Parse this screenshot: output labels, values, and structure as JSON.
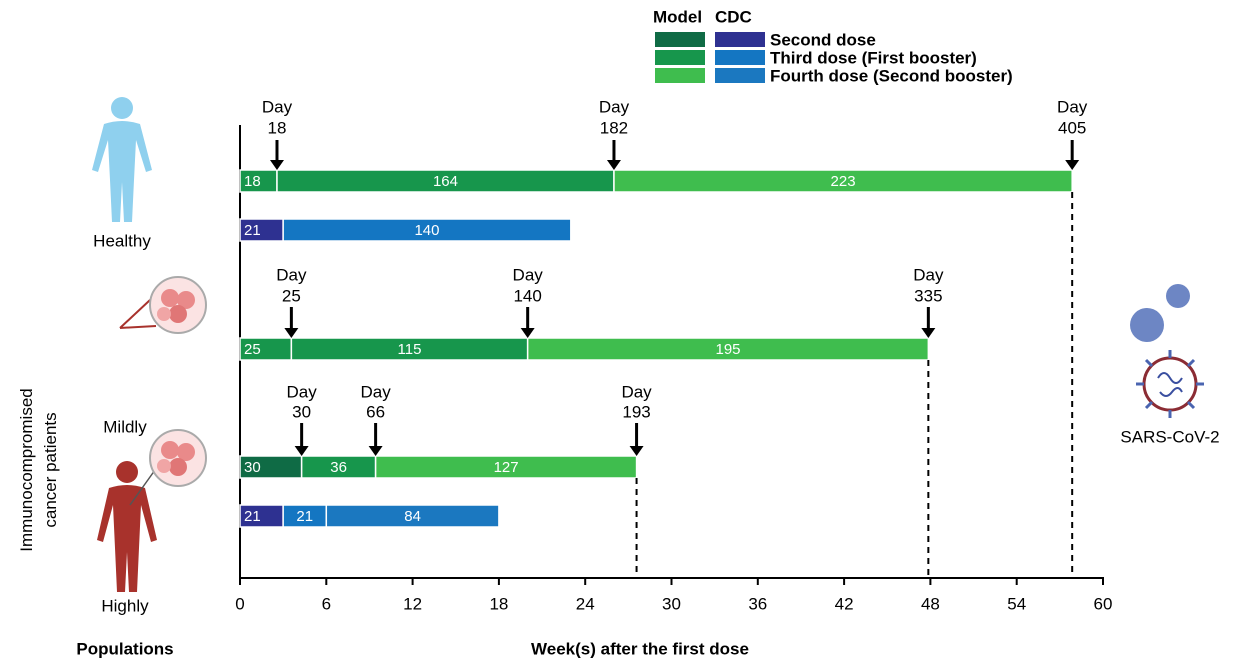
{
  "chart_data": {
    "type": "bar",
    "orientation": "horizontal",
    "stacked": true,
    "title_y": "Immunocompromised cancer patients",
    "title_pop": "Populations",
    "x_label": "Week(s) after the first dose",
    "virus_label": "SARS-CoV-2",
    "legend_headers": [
      "Model",
      "CDC"
    ],
    "series": [
      {
        "name": "Second dose",
        "colors": [
          "#0f6b45",
          "#2e3191"
        ]
      },
      {
        "name": "Third dose (First booster)",
        "colors": [
          "#17964c",
          "#1476c2"
        ]
      },
      {
        "name": "Fourth dose (Second booster)",
        "colors": [
          "#3fbd4e",
          "#1b78c0"
        ]
      }
    ],
    "populations": [
      "Healthy",
      "Mildly",
      "Highly"
    ],
    "rows": [
      {
        "values": [
          18,
          164,
          223
        ],
        "colors": [
          "#17964c",
          "#17964c",
          "#3fbd4e"
        ],
        "markers": [
          {
            "label": "Day",
            "value": 18
          },
          {
            "label": "Day",
            "value": 182
          },
          {
            "label": "Day",
            "value": 405,
            "dashed": true
          }
        ]
      },
      {
        "values": [
          21,
          140
        ],
        "colors": [
          "#2e3191",
          "#1476c2"
        ],
        "markers": []
      },
      {
        "values": [
          25,
          115,
          195
        ],
        "colors": [
          "#17964c",
          "#17964c",
          "#3fbd4e"
        ],
        "markers": [
          {
            "label": "Day",
            "value": 25
          },
          {
            "label": "Day",
            "value": 140
          },
          {
            "label": "Day",
            "value": 335,
            "dashed": true
          }
        ]
      },
      {
        "values": [
          30,
          36,
          127
        ],
        "colors": [
          "#0f6b45",
          "#17964c",
          "#3fbd4e"
        ],
        "markers": [
          {
            "label": "Day",
            "value": 30
          },
          {
            "label": "Day",
            "value": 66
          },
          {
            "label": "Day",
            "value": 193,
            "dashed": true
          }
        ]
      },
      {
        "values": [
          21,
          21,
          84
        ],
        "colors": [
          "#2e3191",
          "#1476c2",
          "#1b78c0"
        ],
        "markers": []
      }
    ],
    "xlim": [
      0,
      420
    ],
    "xticks": [
      {
        "value": 0,
        "label": "0"
      },
      {
        "value": 42,
        "label": "6"
      },
      {
        "value": 84,
        "label": "12"
      },
      {
        "value": 126,
        "label": "18"
      },
      {
        "value": 168,
        "label": "24"
      },
      {
        "value": 210,
        "label": "30"
      },
      {
        "value": 252,
        "label": "36"
      },
      {
        "value": 294,
        "label": "42"
      },
      {
        "value": 336,
        "label": "48"
      },
      {
        "value": 378,
        "label": "54"
      },
      {
        "value": 420,
        "label": "60"
      }
    ]
  }
}
